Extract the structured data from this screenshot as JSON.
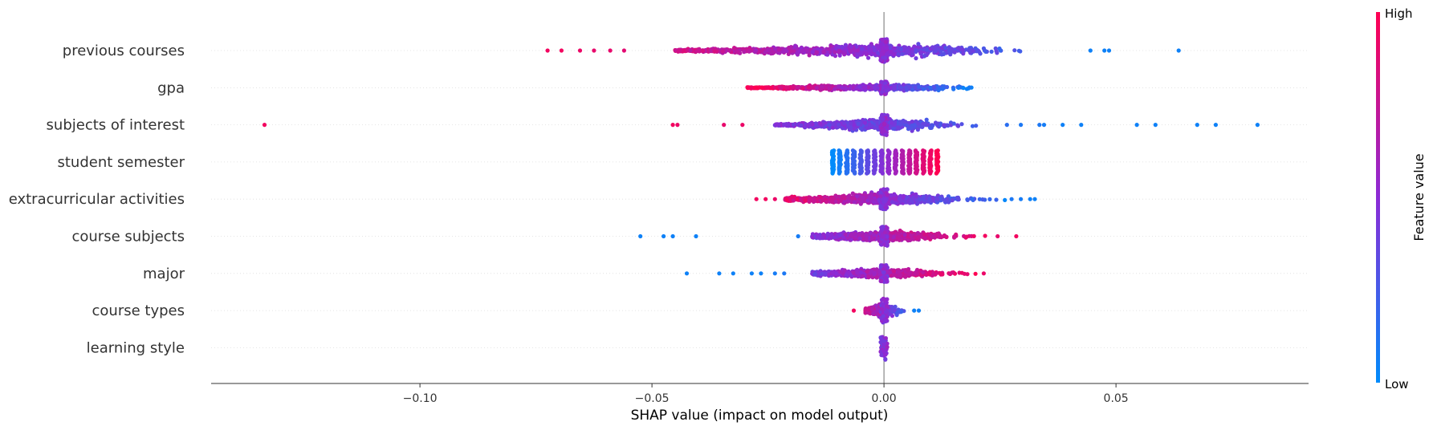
{
  "chart_data": {
    "type": "scatter",
    "subtype": "shap-beeswarm",
    "title": "",
    "xlabel": "SHAP value (impact on model output)",
    "ylabel": "",
    "xlim": [
      -0.145,
      0.0915
    ],
    "x_ticks": [
      {
        "value": -0.1,
        "label": "−0.10"
      },
      {
        "value": -0.05,
        "label": "−0.05"
      },
      {
        "value": 0.0,
        "label": "0.00"
      },
      {
        "value": 0.05,
        "label": "0.05"
      }
    ],
    "zero_line": 0.0,
    "colorbar": {
      "title": "Feature value",
      "high_label": "High",
      "low_label": "Low",
      "high_color": "#ff0052",
      "mid_color": "#8b2bd6",
      "low_color": "#008bfb"
    },
    "features": [
      {
        "name": "previous courses",
        "min": -0.0725,
        "max": 0.0635,
        "core": [
          -0.045,
          0.035
        ],
        "spread": 0.85,
        "trend": -1,
        "dense": 900,
        "outliers": [
          [
            -0.0725,
            0.95
          ],
          [
            -0.0695,
            0.95
          ],
          [
            -0.0655,
            0.92
          ],
          [
            -0.0625,
            0.9
          ],
          [
            -0.059,
            0.9
          ],
          [
            -0.056,
            0.88
          ],
          [
            0.0445,
            0.05
          ],
          [
            0.0475,
            0.05
          ],
          [
            0.0485,
            0.05
          ],
          [
            0.0635,
            0.05
          ]
        ]
      },
      {
        "name": "gpa",
        "min": -0.0295,
        "max": 0.0235,
        "core": [
          -0.0295,
          0.0235
        ],
        "spread": 0.45,
        "trend": -1,
        "dense": 650,
        "outliers": []
      },
      {
        "name": "subjects of interest",
        "min": -0.1335,
        "max": 0.0805,
        "core": [
          -0.0235,
          0.022
        ],
        "spread": 0.75,
        "trend": -1,
        "dense": 800,
        "outliers": [
          [
            -0.1335,
            0.95
          ],
          [
            -0.0455,
            0.95
          ],
          [
            -0.0445,
            0.92
          ],
          [
            -0.0345,
            0.9
          ],
          [
            -0.0305,
            0.92
          ],
          [
            0.0265,
            0.15
          ],
          [
            0.0295,
            0.1
          ],
          [
            0.0335,
            0.1
          ],
          [
            0.0345,
            0.08
          ],
          [
            0.0385,
            0.05
          ],
          [
            0.0425,
            0.05
          ],
          [
            0.0545,
            0.05
          ],
          [
            0.0585,
            0.05
          ],
          [
            0.0675,
            0.05
          ],
          [
            0.0715,
            0.05
          ],
          [
            0.0805,
            0.05
          ]
        ]
      },
      {
        "name": "student semester",
        "min": -0.011,
        "max": 0.0115,
        "core": [
          -0.011,
          0.0115
        ],
        "spread": 0.8,
        "trend": 1,
        "dense": 0,
        "columns": [
          -0.011,
          -0.0095,
          -0.008,
          -0.0065,
          -0.005,
          -0.0035,
          -0.002,
          -0.0005,
          0.001,
          0.0025,
          0.004,
          0.0055,
          0.007,
          0.0085,
          0.01,
          0.0115
        ],
        "outliers": []
      },
      {
        "name": "extracurricular activities",
        "min": -0.0275,
        "max": 0.0325,
        "core": [
          -0.0215,
          0.0265
        ],
        "spread": 0.75,
        "trend": -1,
        "dense": 800,
        "outliers": [
          [
            -0.0275,
            0.95
          ],
          [
            -0.0255,
            0.95
          ],
          [
            -0.0235,
            0.92
          ],
          [
            0.0275,
            0.1
          ],
          [
            0.0295,
            0.08
          ],
          [
            0.0315,
            0.05
          ],
          [
            0.0325,
            0.05
          ]
        ]
      },
      {
        "name": "course subjects",
        "min": -0.0525,
        "max": 0.0285,
        "core": [
          -0.0155,
          0.0225
        ],
        "spread": 0.7,
        "trend": 1,
        "dense": 750,
        "outliers": [
          [
            -0.0525,
            0.05
          ],
          [
            -0.0475,
            0.05
          ],
          [
            -0.0455,
            0.05
          ],
          [
            -0.0405,
            0.05
          ],
          [
            -0.0185,
            0.08
          ],
          [
            0.0245,
            0.9
          ],
          [
            0.0285,
            0.95
          ]
        ]
      },
      {
        "name": "major",
        "min": -0.0425,
        "max": 0.0215,
        "core": [
          -0.0155,
          0.0205
        ],
        "spread": 0.6,
        "trend": 1,
        "dense": 750,
        "outliers": [
          [
            -0.0425,
            0.05
          ],
          [
            -0.0355,
            0.05
          ],
          [
            -0.0325,
            0.05
          ],
          [
            -0.0285,
            0.05
          ],
          [
            -0.0265,
            0.05
          ],
          [
            -0.0235,
            0.08
          ],
          [
            -0.0215,
            0.1
          ],
          [
            0.0215,
            0.92
          ]
        ]
      },
      {
        "name": "course types",
        "min": -0.0065,
        "max": 0.0075,
        "core": [
          -0.004,
          0.005
        ],
        "spread": 0.9,
        "trend": -1,
        "dense": 400,
        "outliers": [
          [
            -0.0065,
            0.95
          ],
          [
            0.0065,
            0.05
          ],
          [
            0.0075,
            0.05
          ]
        ]
      },
      {
        "name": "learning style",
        "min": -0.0005,
        "max": 0.0005,
        "core": [
          -0.0005,
          0.0005
        ],
        "spread": 0.95,
        "trend": -1,
        "dense": 300,
        "outliers": []
      }
    ]
  }
}
